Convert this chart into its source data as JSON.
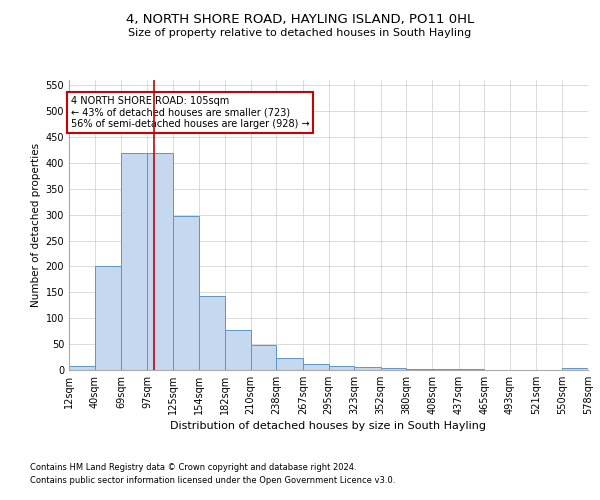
{
  "title1": "4, NORTH SHORE ROAD, HAYLING ISLAND, PO11 0HL",
  "title2": "Size of property relative to detached houses in South Hayling",
  "xlabel": "Distribution of detached houses by size in South Hayling",
  "ylabel": "Number of detached properties",
  "footnote1": "Contains HM Land Registry data © Crown copyright and database right 2024.",
  "footnote2": "Contains public sector information licensed under the Open Government Licence v3.0.",
  "annotation_line1": "4 NORTH SHORE ROAD: 105sqm",
  "annotation_line2": "← 43% of detached houses are smaller (723)",
  "annotation_line3": "56% of semi-detached houses are larger (928) →",
  "bar_color": "#c5d8f0",
  "bar_edge_color": "#5a96cc",
  "vline_color": "#cc0000",
  "vline_x": 105,
  "bins": [
    12,
    40,
    69,
    97,
    125,
    154,
    182,
    210,
    238,
    267,
    295,
    323,
    352,
    380,
    408,
    437,
    465,
    493,
    521,
    550,
    578
  ],
  "values": [
    8,
    200,
    420,
    420,
    298,
    142,
    77,
    48,
    23,
    12,
    8,
    5,
    3,
    2,
    1,
    1,
    0,
    0,
    0,
    3
  ],
  "ylim": [
    0,
    560
  ],
  "yticks": [
    0,
    50,
    100,
    150,
    200,
    250,
    300,
    350,
    400,
    450,
    500,
    550
  ],
  "background_color": "#ffffff",
  "grid_color": "#cccccc",
  "title1_fontsize": 9.5,
  "title2_fontsize": 8.0,
  "ylabel_fontsize": 7.5,
  "xlabel_fontsize": 8.0,
  "tick_fontsize": 7,
  "footnote_fontsize": 6.0
}
